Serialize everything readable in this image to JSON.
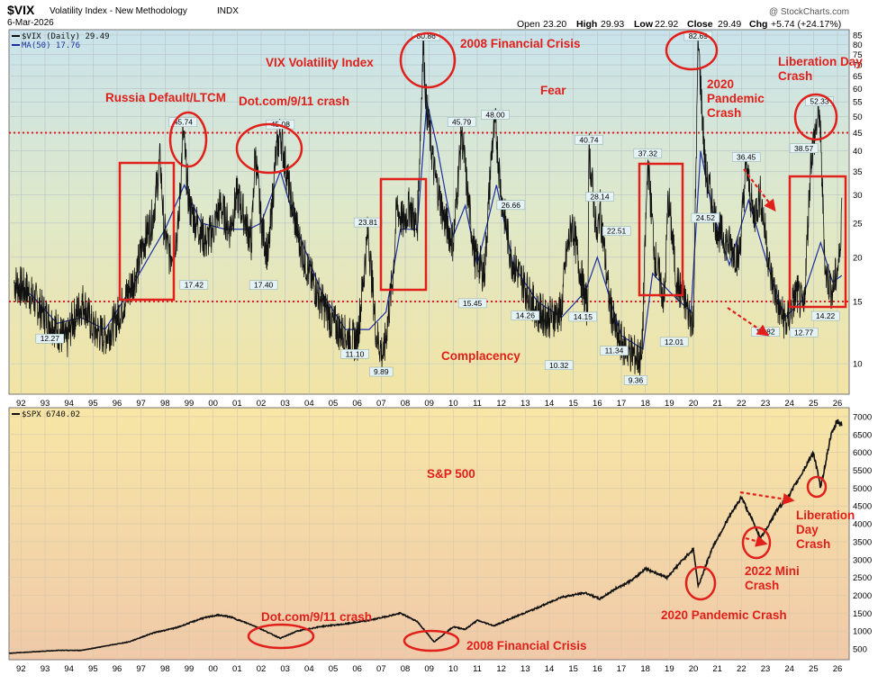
{
  "header": {
    "symbol": "$VIX",
    "name": "Volatility Index - New Methodology",
    "exchange": "INDX",
    "date": "6-Mar-2026",
    "watermark": "@ StockCharts.com",
    "ohlc": {
      "open_label": "Open",
      "open": "23.20",
      "high_label": "High",
      "high": "29.93",
      "low_label": "Low",
      "low": "22.92",
      "close_label": "Close",
      "close": "29.49",
      "chg_label": "Chg",
      "chg": "+5.74 (+24.17%)"
    }
  },
  "colors": {
    "annotation": "#e0201b",
    "vix_line": "#111111",
    "ma_line": "#1b2fa0",
    "spx_line": "#111111",
    "grid": "#b8c4c4"
  },
  "chart_data": [
    {
      "type": "line",
      "panel": "top",
      "scale": "log",
      "legend": [
        {
          "label": "$VIX (Daily) 29.49",
          "color": "#111111"
        },
        {
          "label": "MA(50) 17.76",
          "color": "#1b2fa0"
        }
      ],
      "yticks": [
        "85",
        "80",
        "75",
        "70",
        "65",
        "60",
        "55",
        "50",
        "45",
        "40",
        "35",
        "30",
        "25",
        "20",
        "15",
        "10"
      ],
      "xticks": [
        "92",
        "93",
        "94",
        "95",
        "96",
        "97",
        "98",
        "99",
        "00",
        "01",
        "02",
        "03",
        "04",
        "05",
        "06",
        "07",
        "08",
        "09",
        "10",
        "11",
        "12",
        "13",
        "14",
        "15",
        "16",
        "17",
        "18",
        "19",
        "20",
        "21",
        "22",
        "23",
        "24",
        "25",
        "26"
      ],
      "xlim": [
        1991.5,
        2026.3
      ],
      "ylim": [
        8.2,
        88
      ],
      "series": [
        {
          "name": "$VIX (Daily)",
          "x": [
            1991.7,
            1992.3,
            1992.9,
            1993.5,
            1993.9,
            1994.1,
            1994.6,
            1995.0,
            1995.5,
            1995.9,
            1996.3,
            1996.8,
            1997.1,
            1997.5,
            1997.8,
            1997.95,
            1998.2,
            1998.55,
            1998.75,
            1999.0,
            1999.3,
            1999.7,
            2000.0,
            2000.3,
            2000.7,
            2001.0,
            2001.3,
            2001.6,
            2001.75,
            2002.0,
            2002.3,
            2002.6,
            2002.8,
            2003.2,
            2003.6,
            2004.0,
            2004.5,
            2005.0,
            2005.5,
            2006.0,
            2006.45,
            2006.8,
            2007.1,
            2007.5,
            2007.65,
            2007.9,
            2008.2,
            2008.5,
            2008.75,
            2008.87,
            2009.2,
            2009.6,
            2010.0,
            2010.35,
            2010.6,
            2010.9,
            2011.3,
            2011.6,
            2011.75,
            2012.0,
            2012.4,
            2012.9,
            2013.5,
            2014.0,
            2014.5,
            2014.7,
            2014.95,
            2015.3,
            2015.6,
            2015.65,
            2016.0,
            2016.1,
            2016.5,
            2016.8,
            2017.2,
            2017.6,
            2017.85,
            2018.1,
            2018.4,
            2018.8,
            2018.95,
            2019.3,
            2019.8,
            2020.0,
            2020.2,
            2020.5,
            2020.8,
            2021.0,
            2021.4,
            2021.9,
            2022.2,
            2022.5,
            2022.8,
            2023.2,
            2023.6,
            2023.9,
            2024.3,
            2024.6,
            2024.9,
            2025.25,
            2025.5,
            2025.8,
            2026.1,
            2026.18
          ],
          "values": [
            17,
            16,
            14,
            12.5,
            11.5,
            13,
            15,
            12.5,
            12,
            13,
            15,
            18,
            22,
            26,
            38,
            24,
            20,
            24,
            45.74,
            28,
            25,
            22,
            24,
            28,
            24,
            30,
            26,
            22,
            40,
            25,
            20,
            38,
            45.08,
            30,
            22,
            18,
            15,
            13,
            12,
            11.5,
            23.81,
            12,
            10.5,
            18,
            28,
            25,
            28,
            24,
            80.86,
            55,
            35,
            26,
            22,
            45.79,
            30,
            20,
            18,
            40,
            48,
            30,
            20,
            17,
            14,
            13.5,
            14,
            20,
            25,
            18,
            14,
            40.74,
            22,
            28.14,
            15,
            12,
            11,
            10.5,
            10.32,
            37.32,
            20,
            15,
            30,
            17,
            14,
            13,
            82.69,
            35,
            28,
            24,
            22,
            20,
            36.45,
            26,
            30,
            18,
            14,
            13,
            16,
            14,
            38.57,
            52.33,
            18,
            16,
            20,
            29.49
          ]
        },
        {
          "name": "MA(50)",
          "x": [
            1991.7,
            1992.5,
            1993.5,
            1994.5,
            1995.5,
            1996.5,
            1997.5,
            1998.0,
            1998.8,
            1999.5,
            2000.5,
            2001.5,
            2002.0,
            2002.8,
            2003.5,
            2004.5,
            2005.5,
            2006.5,
            2007.2,
            2007.8,
            2008.5,
            2008.9,
            2009.3,
            2010.0,
            2010.5,
            2011.0,
            2011.8,
            2012.5,
            2013.5,
            2014.5,
            2015.5,
            2016.0,
            2017.0,
            2017.9,
            2018.3,
            2019.0,
            2019.9,
            2020.3,
            2020.8,
            2021.5,
            2022.3,
            2023.0,
            2023.8,
            2024.5,
            2025.3,
            2025.8,
            2026.18
          ],
          "values": [
            17,
            15.5,
            13,
            13.5,
            12.5,
            16,
            21,
            24,
            32,
            25,
            24,
            24,
            25,
            35,
            24,
            16,
            12.5,
            12.5,
            14,
            24,
            24,
            55,
            42,
            23,
            28,
            19,
            32,
            19,
            15,
            13.5,
            16,
            20,
            12,
            11,
            18,
            16,
            14,
            40,
            27,
            19,
            29,
            20,
            13.5,
            15,
            22,
            17,
            17.76
          ]
        }
      ],
      "peak_labels": [
        {
          "x": 1993.2,
          "value": "12.27"
        },
        {
          "x": 1998.75,
          "value": "45.74"
        },
        {
          "x": 1999.2,
          "value": "17.42"
        },
        {
          "x": 2002.8,
          "value": "45.08"
        },
        {
          "x": 2002.1,
          "value": "17.40"
        },
        {
          "x": 2006.45,
          "value": "23.81"
        },
        {
          "x": 2005.9,
          "value": "11.10"
        },
        {
          "x": 2007.0,
          "value": "9.89"
        },
        {
          "x": 2008.87,
          "value": "80.86"
        },
        {
          "x": 2010.35,
          "value": "45.79"
        },
        {
          "x": 2010.8,
          "value": "15.45"
        },
        {
          "x": 2011.75,
          "value": "48.00"
        },
        {
          "x": 2012.4,
          "value": "26.66"
        },
        {
          "x": 2013.0,
          "value": "14.26"
        },
        {
          "x": 2015.65,
          "value": "40.74"
        },
        {
          "x": 2015.4,
          "value": "14.15"
        },
        {
          "x": 2016.1,
          "value": "28.14"
        },
        {
          "x": 2016.8,
          "value": "22.51"
        },
        {
          "x": 2014.4,
          "value": "10.32"
        },
        {
          "x": 2016.7,
          "value": "11.34"
        },
        {
          "x": 2017.6,
          "value": "9.36"
        },
        {
          "x": 2018.1,
          "value": "37.32"
        },
        {
          "x": 2019.2,
          "value": "12.01"
        },
        {
          "x": 2020.2,
          "value": "82.69"
        },
        {
          "x": 2020.5,
          "value": "24.52"
        },
        {
          "x": 2022.2,
          "value": "36.45"
        },
        {
          "x": 2023.0,
          "value": "12.82"
        },
        {
          "x": 2024.6,
          "value": "38.57"
        },
        {
          "x": 2025.25,
          "value": "52.33"
        },
        {
          "x": 2024.6,
          "value": "12.77"
        },
        {
          "x": 2025.5,
          "value": "14.22"
        }
      ],
      "reference_lines": [
        45,
        15
      ],
      "annotations": [
        "Russia Default/LTCM",
        "Dot.com/9/11 crash",
        "VIX Volatility Index",
        "2008 Financial Crisis",
        "Fear",
        "Complacency",
        "2020",
        "Pandemic",
        "Crash",
        "Liberation Day",
        "Crash"
      ]
    },
    {
      "type": "line",
      "panel": "bottom",
      "legend": [
        {
          "label": "$SPX 6740.02",
          "color": "#111111"
        }
      ],
      "yticks": [
        "7000",
        "6500",
        "6000",
        "5500",
        "5000",
        "4500",
        "4000",
        "3500",
        "3000",
        "2500",
        "2000",
        "1500",
        "1000",
        "500"
      ],
      "xticks": [
        "92",
        "93",
        "94",
        "95",
        "96",
        "97",
        "98",
        "99",
        "00",
        "01",
        "02",
        "03",
        "04",
        "05",
        "06",
        "07",
        "08",
        "09",
        "10",
        "11",
        "12",
        "13",
        "14",
        "15",
        "16",
        "17",
        "18",
        "19",
        "20",
        "21",
        "22",
        "23",
        "24",
        "25",
        "26"
      ],
      "xlim": [
        1991.5,
        2026.3
      ],
      "ylim": [
        200,
        7250
      ],
      "series": [
        {
          "name": "$SPX",
          "x": [
            1991.5,
            1992.5,
            1993.5,
            1994.5,
            1995.5,
            1996.5,
            1997.5,
            1998.5,
            1999.5,
            2000.2,
            2000.7,
            2001.7,
            2002.8,
            2003.5,
            2004.5,
            2005.5,
            2006.5,
            2007.8,
            2008.5,
            2009.2,
            2010.0,
            2010.5,
            2011.0,
            2011.7,
            2012.5,
            2013.5,
            2014.5,
            2015.5,
            2016.1,
            2016.8,
            2017.5,
            2018.0,
            2018.9,
            2019.5,
            2020.0,
            2020.2,
            2020.8,
            2021.5,
            2022.0,
            2022.8,
            2023.5,
            2024.0,
            2024.5,
            2025.0,
            2025.3,
            2025.7,
            2026.0,
            2026.18
          ],
          "values": [
            380,
            420,
            460,
            460,
            580,
            700,
            950,
            1100,
            1350,
            1450,
            1400,
            1150,
            800,
            1000,
            1130,
            1200,
            1300,
            1500,
            1270,
            700,
            1120,
            1050,
            1300,
            1150,
            1380,
            1650,
            1950,
            2070,
            1900,
            2200,
            2450,
            2750,
            2500,
            2950,
            3300,
            2250,
            3350,
            4200,
            4750,
            3600,
            4400,
            4800,
            5400,
            6000,
            5000,
            6400,
            6900,
            6740.02
          ]
        }
      ],
      "annotations": [
        "S&P 500",
        "Dot.com/9/11 crash",
        "2008 Financial Crisis",
        "2020 Pandemic Crash",
        "2022 Mini",
        "Crash",
        "Liberation",
        "Day",
        "Crash"
      ]
    }
  ]
}
